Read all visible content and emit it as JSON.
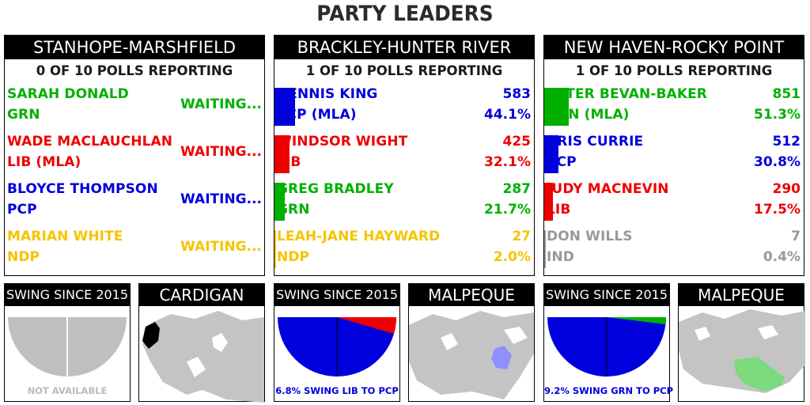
{
  "page": {
    "title": "PARTY LEADERS"
  },
  "colors": {
    "grn": "#00b000",
    "lib": "#ee0000",
    "pcp": "#0000dd",
    "ndp": "#f5c400",
    "ind": "#999999"
  },
  "ridings": [
    {
      "name": "STANHOPE-MARSHFIELD",
      "polls": "0 OF 10 POLLS REPORTING",
      "candidates": [
        {
          "name": "SARAH DONALD",
          "party": "GRN",
          "status": "WAITING...",
          "color": "#00b000"
        },
        {
          "name": "WADE MACLAUCHLAN",
          "party": "LIB (MLA)",
          "status": "WAITING...",
          "color": "#ee0000"
        },
        {
          "name": "BLOYCE THOMPSON",
          "party": "PCP",
          "status": "WAITING...",
          "color": "#0000dd"
        },
        {
          "name": "MARIAN WHITE",
          "party": "NDP",
          "status": "WAITING...",
          "color": "#f5c400"
        }
      ],
      "swing": {
        "label": "SWING SINCE 2015",
        "note": "NOT AVAILABLE",
        "note_color": "#bbbbbb"
      },
      "map": {
        "label": "CARDIGAN"
      }
    },
    {
      "name": "BRACKLEY-HUNTER RIVER",
      "polls": "1 OF 10 POLLS REPORTING",
      "candidates": [
        {
          "name": "DENNIS KING",
          "party": "PCP (MLA)",
          "votes": "583",
          "pct": "44.1%",
          "share": 0.441,
          "color": "#0000dd"
        },
        {
          "name": "WINDSOR WIGHT",
          "party": "LIB",
          "votes": "425",
          "pct": "32.1%",
          "share": 0.321,
          "color": "#ee0000"
        },
        {
          "name": "GREG BRADLEY",
          "party": "GRN",
          "votes": "287",
          "pct": "21.7%",
          "share": 0.217,
          "color": "#00b000"
        },
        {
          "name": "LEAH-JANE HAYWARD",
          "party": "NDP",
          "votes": "27",
          "pct": "2.0%",
          "share": 0.02,
          "color": "#f5c400"
        }
      ],
      "swing": {
        "label": "SWING SINCE 2015",
        "note": "6.8% SWING LIB TO PCP",
        "note_color": "#0000dd"
      },
      "map": {
        "label": "MALPEQUE"
      }
    },
    {
      "name": "NEW HAVEN-ROCKY POINT",
      "polls": "1 OF 10 POLLS REPORTING",
      "candidates": [
        {
          "name": "PETER BEVAN-BAKER",
          "party": "GRN (MLA)",
          "votes": "851",
          "pct": "51.3%",
          "share": 0.513,
          "color": "#00b000"
        },
        {
          "name": "KRIS CURRIE",
          "party": "PCP",
          "votes": "512",
          "pct": "30.8%",
          "share": 0.308,
          "color": "#0000dd"
        },
        {
          "name": "JUDY MACNEVIN",
          "party": "LIB",
          "votes": "290",
          "pct": "17.5%",
          "share": 0.175,
          "color": "#ee0000"
        },
        {
          "name": "DON WILLS",
          "party": "IND",
          "votes": "7",
          "pct": "0.4%",
          "share": 0.004,
          "color": "#999999"
        }
      ],
      "swing": {
        "label": "SWING SINCE 2015",
        "note": "9.2% SWING GRN TO PCP",
        "note_color": "#0000dd"
      },
      "map": {
        "label": "MALPEQUE"
      }
    }
  ]
}
